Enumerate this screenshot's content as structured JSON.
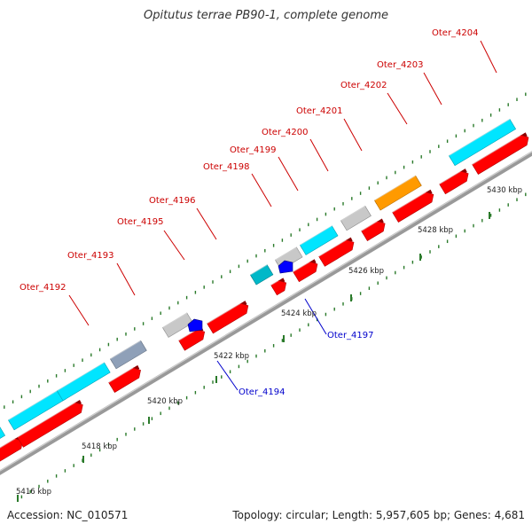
{
  "title": "Opitutus terrae PB90-1, complete genome",
  "footer": {
    "accession": "Accession: NC_010571",
    "summary": "Topology: circular; Length: 5,957,605 bp; Genes: 4,681"
  },
  "colors": {
    "cds_forward": "#ff0000",
    "cds_reverse": "#0000ff",
    "rna_cyan": "#00e5ff",
    "rna_teal": "#00b8c8",
    "other": "#c8c8c8",
    "highlight": "#ff9a00",
    "mixed": "#8fa0b8",
    "backbone": "#999999",
    "tick": "#2a7a2a",
    "label_forward": "#cc0000",
    "label_reverse": "#0000cc"
  },
  "scale": {
    "unit": "kbp",
    "tick_labels": [
      {
        "kbp": 5416,
        "text": "5416 kbp"
      },
      {
        "kbp": 5418,
        "text": "5418 kbp"
      },
      {
        "kbp": 5420,
        "text": "5420 kbp"
      },
      {
        "kbp": 5422,
        "text": "5422 kbp"
      },
      {
        "kbp": 5424,
        "text": "5424 kbp"
      },
      {
        "kbp": 5426,
        "text": "5426 kbp"
      },
      {
        "kbp": 5428,
        "text": "5428 kbp"
      },
      {
        "kbp": 5430,
        "text": "5430 kbp"
      }
    ]
  },
  "genes": [
    {
      "label": "Oter_4192",
      "strand": "forward"
    },
    {
      "label": "Oter_4193",
      "strand": "forward"
    },
    {
      "label": "Oter_4194",
      "strand": "reverse"
    },
    {
      "label": "Oter_4195",
      "strand": "forward"
    },
    {
      "label": "Oter_4196",
      "strand": "forward"
    },
    {
      "label": "Oter_4197",
      "strand": "reverse"
    },
    {
      "label": "Oter_4198",
      "strand": "forward"
    },
    {
      "label": "Oter_4199",
      "strand": "forward"
    },
    {
      "label": "Oter_4200",
      "strand": "forward"
    },
    {
      "label": "Oter_4201",
      "strand": "forward"
    },
    {
      "label": "Oter_4202",
      "strand": "forward"
    },
    {
      "label": "Oter_4203",
      "strand": "forward"
    },
    {
      "label": "Oter_4204",
      "strand": "forward"
    }
  ]
}
